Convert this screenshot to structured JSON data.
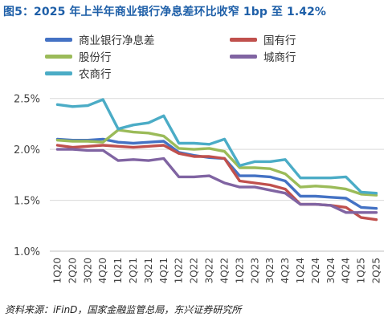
{
  "title": "图5：2025 年上半年商业银行净息差环比收窄 1bp 至 1.42%",
  "source": "资料来源：iFinD，国家金融监管总局，东兴证券研究所",
  "chart_data": {
    "type": "line",
    "title": "图5：2025 年上半年商业银行净息差环比收窄 1bp 至 1.42%",
    "xlabel": "",
    "ylabel": "",
    "categories": [
      "1Q20",
      "2Q20",
      "3Q20",
      "4Q20",
      "1Q21",
      "2Q21",
      "3Q21",
      "4Q21",
      "1Q22",
      "2Q22",
      "3Q22",
      "4Q22",
      "1Q23",
      "2Q23",
      "3Q23",
      "4Q23",
      "1Q24",
      "2Q24",
      "3Q24",
      "4Q24",
      "1Q25",
      "2Q25"
    ],
    "y_ticks": [
      "1.0%",
      "1.5%",
      "2.0%",
      "2.5%"
    ],
    "y_tick_values": [
      1.0,
      1.5,
      2.0,
      2.5
    ],
    "ylim": [
      1.0,
      2.6
    ],
    "grid": "horizontal",
    "legend_position": "top",
    "series": [
      {
        "name": "商业银行净息差",
        "color": "#4472c4",
        "values": [
          2.1,
          2.09,
          2.09,
          2.1,
          2.07,
          2.06,
          2.07,
          2.08,
          1.97,
          1.94,
          1.92,
          1.91,
          1.74,
          1.74,
          1.73,
          1.69,
          1.54,
          1.54,
          1.53,
          1.52,
          1.43,
          1.42
        ]
      },
      {
        "name": "国有行",
        "color": "#c0504d",
        "values": [
          2.04,
          2.02,
          2.03,
          2.04,
          2.03,
          2.02,
          2.03,
          2.04,
          1.96,
          1.93,
          1.93,
          1.91,
          1.69,
          1.67,
          1.65,
          1.61,
          1.46,
          1.46,
          1.45,
          1.43,
          1.33,
          1.31
        ]
      },
      {
        "name": "股份行",
        "color": "#9bbb59",
        "values": [
          2.09,
          2.08,
          2.08,
          2.07,
          2.19,
          2.17,
          2.16,
          2.13,
          2.01,
          2.0,
          2.01,
          1.98,
          1.82,
          1.82,
          1.81,
          1.76,
          1.63,
          1.64,
          1.63,
          1.61,
          1.56,
          1.55
        ]
      },
      {
        "name": "城商行",
        "color": "#8064a2",
        "values": [
          2.0,
          2.0,
          1.99,
          1.99,
          1.89,
          1.9,
          1.89,
          1.91,
          1.73,
          1.73,
          1.74,
          1.67,
          1.63,
          1.63,
          1.6,
          1.57,
          1.46,
          1.46,
          1.45,
          1.38,
          1.38,
          1.38
        ]
      },
      {
        "name": "农商行",
        "color": "#4bacc6",
        "values": [
          2.44,
          2.42,
          2.43,
          2.49,
          2.2,
          2.24,
          2.26,
          2.33,
          2.06,
          2.06,
          2.05,
          2.1,
          1.84,
          1.88,
          1.88,
          1.9,
          1.72,
          1.72,
          1.72,
          1.73,
          1.58,
          1.57
        ]
      }
    ]
  }
}
